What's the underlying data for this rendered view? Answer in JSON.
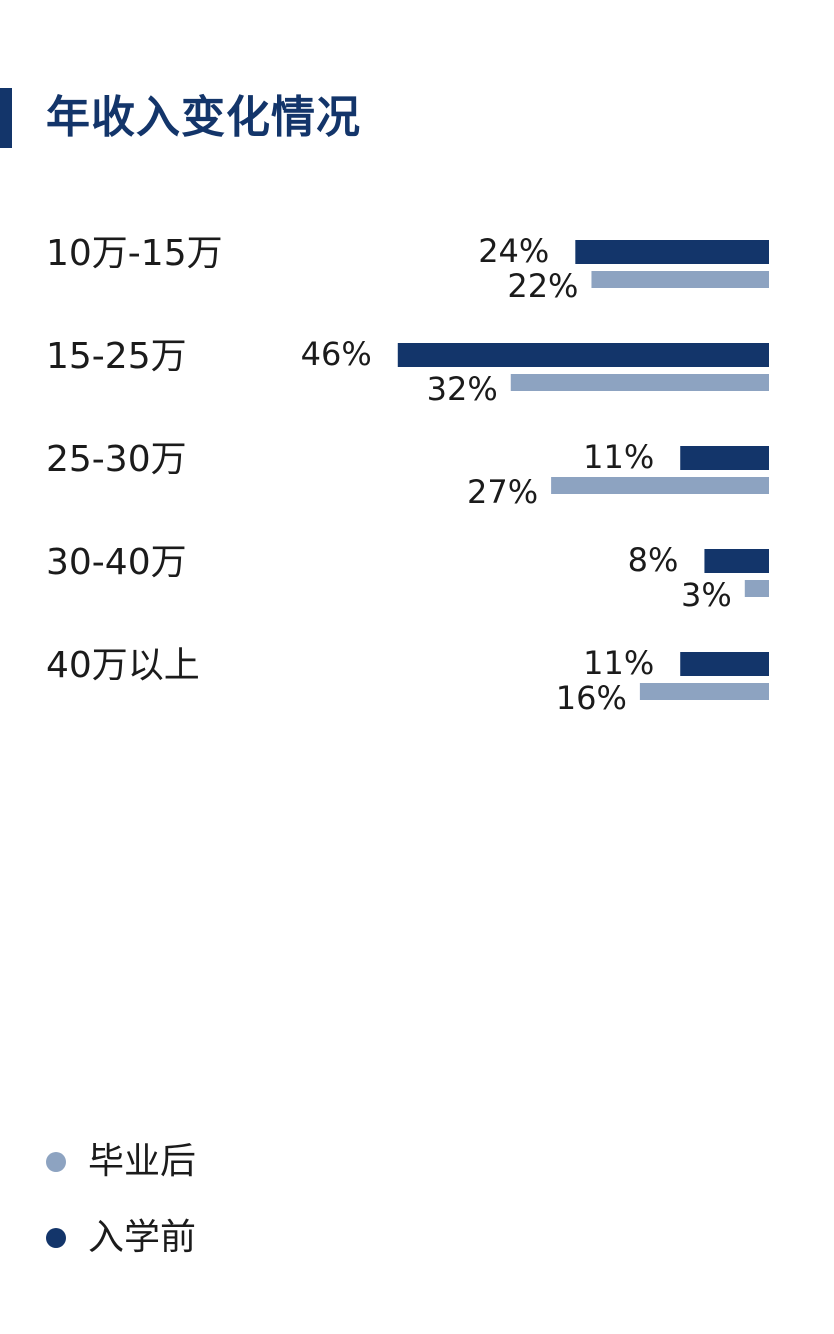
{
  "page": {
    "title": "年收入变化情况"
  },
  "colors": {
    "before": "#13356a",
    "after": "#8da3c1",
    "accent": "#13356a"
  },
  "chart_data": {
    "type": "bar",
    "orientation": "horizontal",
    "categories": [
      "10万-15万",
      "15-25万",
      "25-30万",
      "30-40万",
      "40万以上"
    ],
    "series": [
      {
        "name": "入学前",
        "values": [
          24,
          46,
          11,
          8,
          11
        ],
        "labels": [
          "24%",
          "46%",
          "11%",
          "8%",
          "11%"
        ]
      },
      {
        "name": "毕业后",
        "values": [
          22,
          32,
          27,
          3,
          16
        ],
        "labels": [
          "22%",
          "32%",
          "27%",
          "3%",
          "16%"
        ]
      }
    ],
    "unit": "%",
    "bar_alignment": "right",
    "legend_placement": "bottom-left"
  },
  "legend": [
    {
      "label": "毕业后",
      "color": "#8da3c1",
      "icon": "dot"
    },
    {
      "label": "入学前",
      "color": "#13356a",
      "icon": "dot"
    }
  ]
}
